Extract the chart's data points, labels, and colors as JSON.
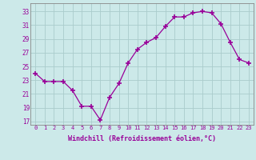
{
  "hours": [
    0,
    1,
    2,
    3,
    4,
    5,
    6,
    7,
    8,
    9,
    10,
    11,
    12,
    13,
    14,
    15,
    16,
    17,
    18,
    19,
    20,
    21,
    22,
    23
  ],
  "values": [
    24.0,
    22.8,
    22.8,
    22.8,
    21.5,
    19.2,
    19.2,
    17.2,
    20.5,
    22.5,
    25.5,
    27.5,
    28.5,
    29.2,
    30.8,
    32.2,
    32.2,
    32.8,
    33.0,
    32.8,
    31.2,
    28.5,
    26.0,
    25.5
  ],
  "line_color": "#990099",
  "marker": "+",
  "marker_size": 4,
  "bg_color": "#cce9e9",
  "grid_color": "#aacccc",
  "ylabel_ticks": [
    17,
    19,
    21,
    23,
    25,
    27,
    29,
    31,
    33
  ],
  "xlabel": "Windchill (Refroidissement éolien,°C)",
  "ylim": [
    16.5,
    34.2
  ],
  "xlim": [
    -0.5,
    23.5
  ]
}
